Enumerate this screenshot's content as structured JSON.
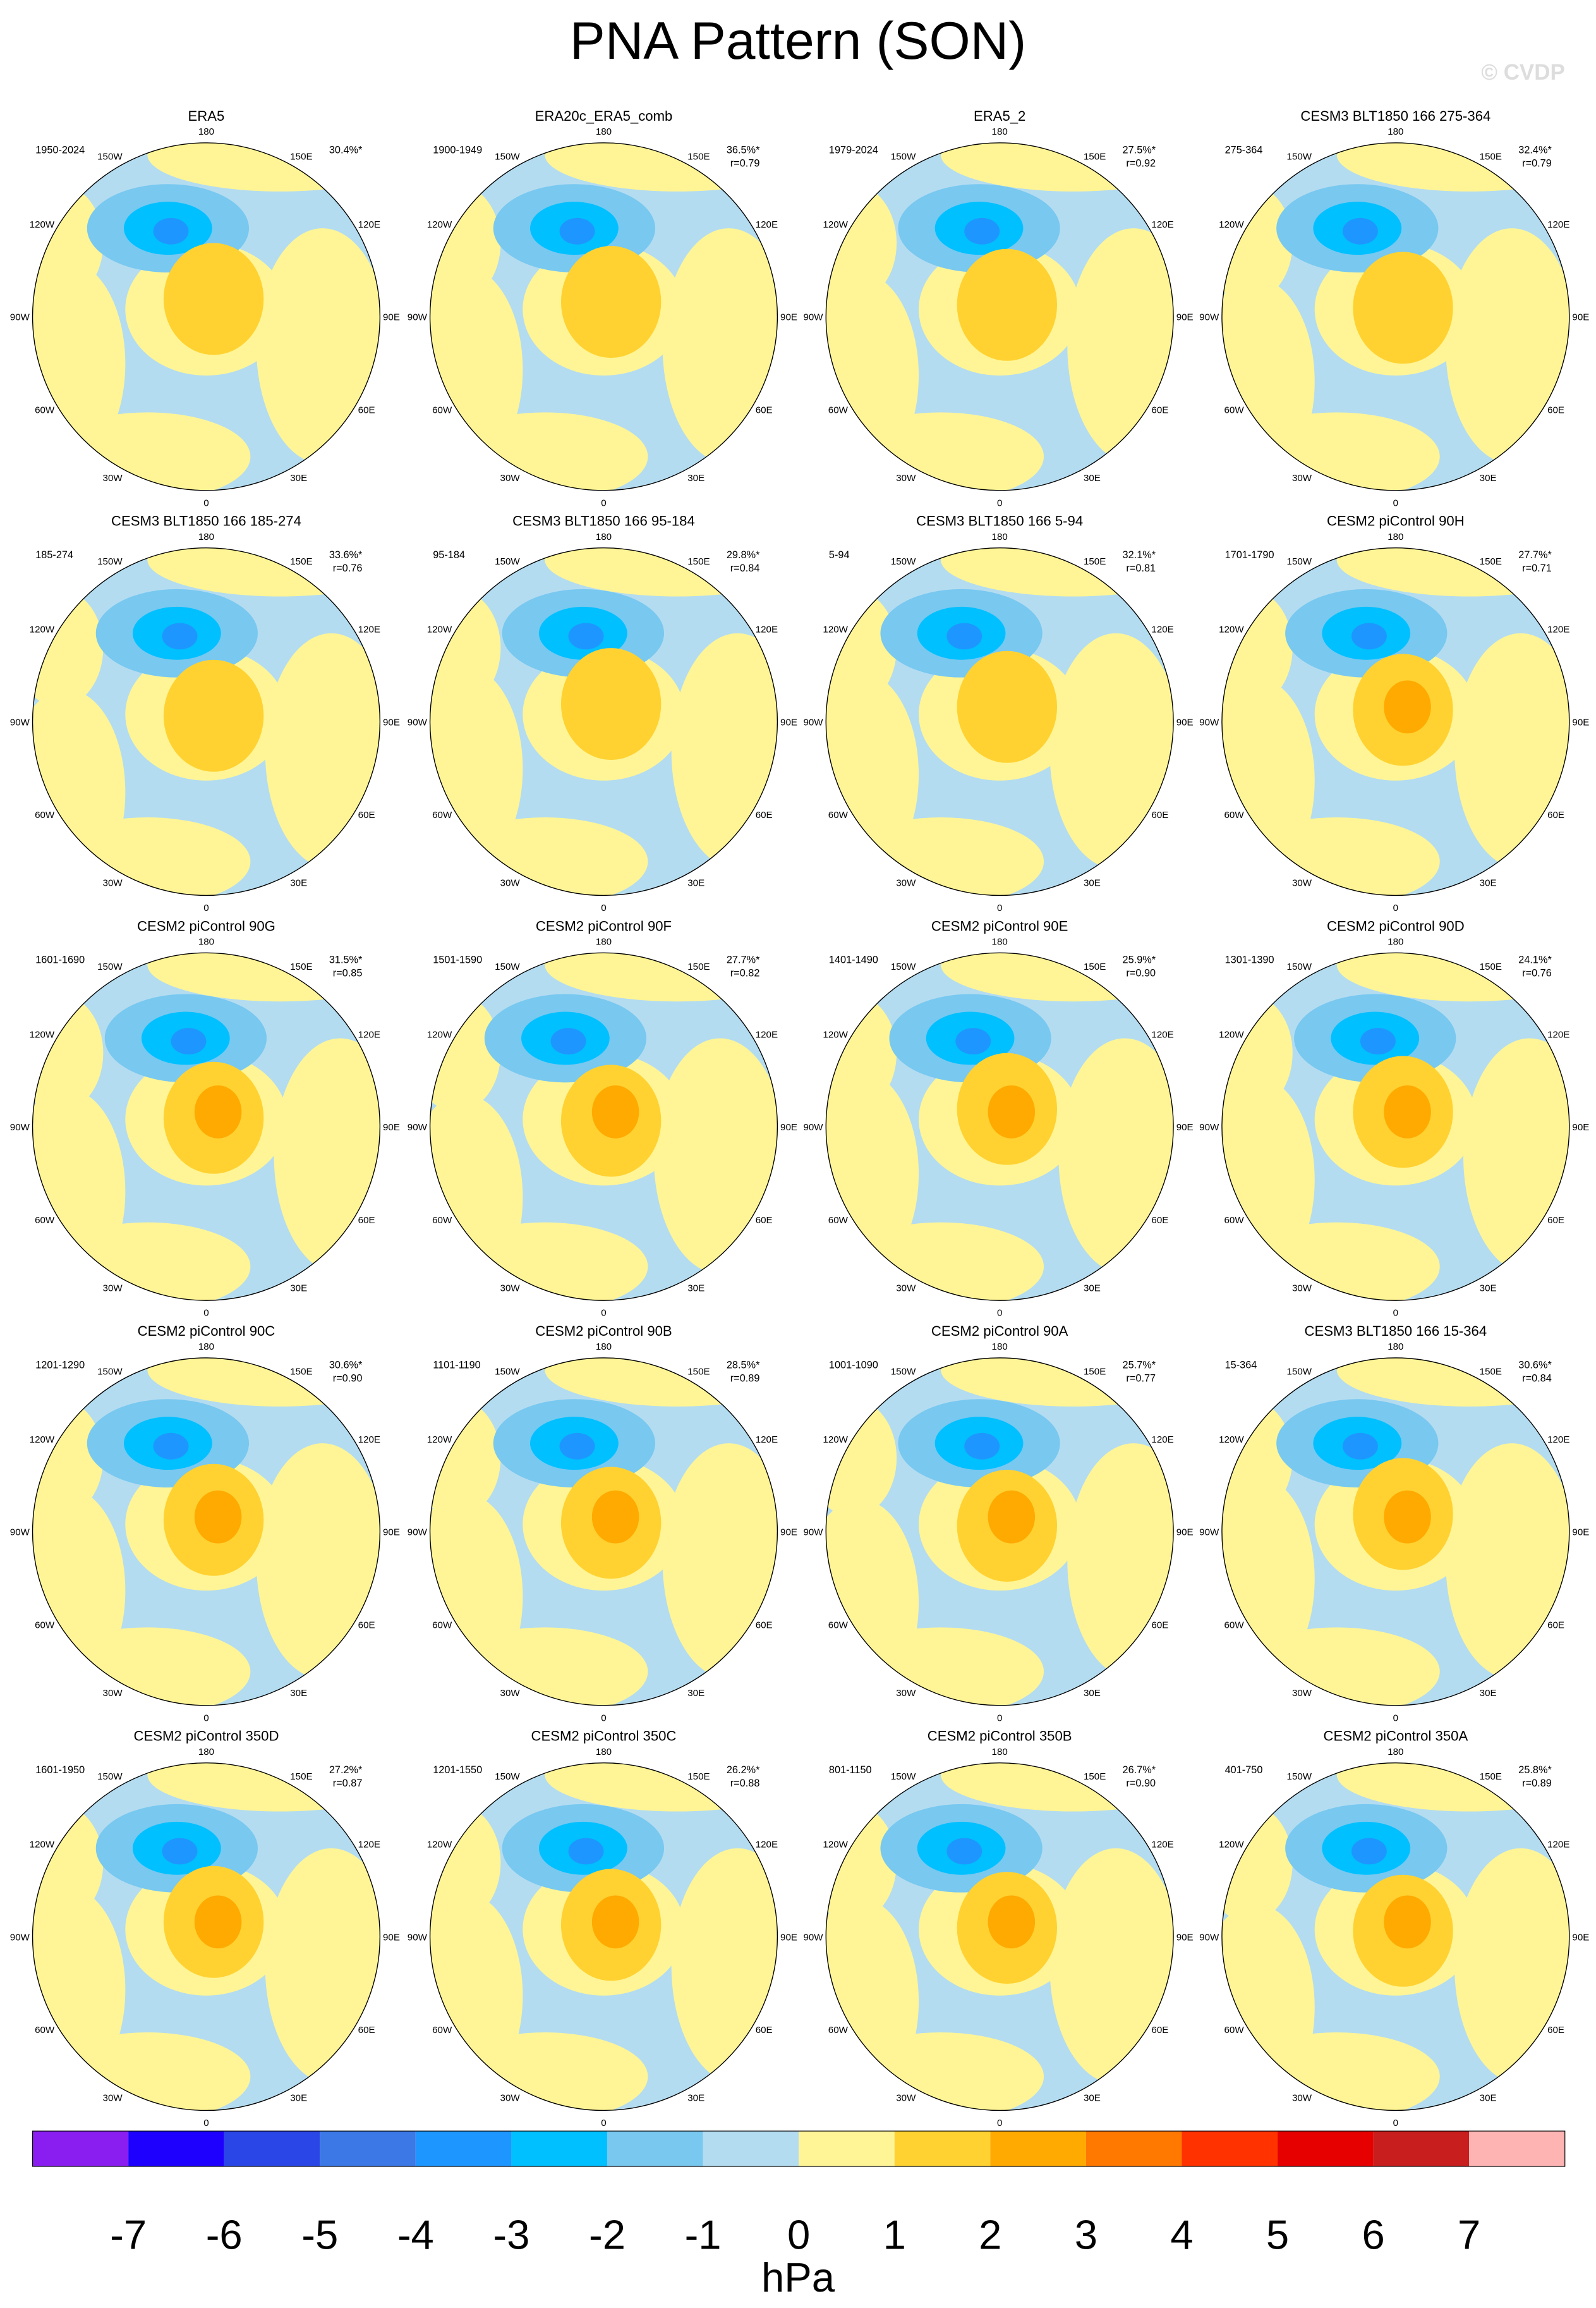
{
  "header": {
    "title": "PNA Pattern (SON)",
    "watermark": "© CVDP"
  },
  "longitude_labels": [
    "180",
    "150E",
    "120E",
    "90E",
    "60E",
    "30E",
    "0",
    "30W",
    "60W",
    "90W",
    "120W",
    "150W"
  ],
  "panels": [
    {
      "title": "ERA5",
      "period": "1950-2024",
      "pct": "30.4%*"
    },
    {
      "title": "ERA20c_ERA5_comb",
      "period": "1900-1949",
      "pct": "36.5%*",
      "r": "r=0.79"
    },
    {
      "title": "ERA5_2",
      "period": "1979-2024",
      "pct": "27.5%*",
      "r": "r=0.92"
    },
    {
      "title": "CESM3 BLT1850 166 275-364",
      "period": "275-364",
      "pct": "32.4%*",
      "r": "r=0.79"
    },
    {
      "title": "CESM3 BLT1850 166 185-274",
      "period": "185-274",
      "pct": "33.6%*",
      "r": "r=0.76"
    },
    {
      "title": "CESM3 BLT1850 166 95-184",
      "period": "95-184",
      "pct": "29.8%*",
      "r": "r=0.84"
    },
    {
      "title": "CESM3 BLT1850 166 5-94",
      "period": "5-94",
      "pct": "32.1%*",
      "r": "r=0.81"
    },
    {
      "title": "CESM2 piControl 90H",
      "period": "1701-1790",
      "pct": "27.7%*",
      "r": "r=0.71"
    },
    {
      "title": "CESM2 piControl 90G",
      "period": "1601-1690",
      "pct": "31.5%*",
      "r": "r=0.85"
    },
    {
      "title": "CESM2 piControl 90F",
      "period": "1501-1590",
      "pct": "27.7%*",
      "r": "r=0.82"
    },
    {
      "title": "CESM2 piControl 90E",
      "period": "1401-1490",
      "pct": "25.9%*",
      "r": "r=0.90"
    },
    {
      "title": "CESM2 piControl 90D",
      "period": "1301-1390",
      "pct": "24.1%*",
      "r": "r=0.76"
    },
    {
      "title": "CESM2 piControl 90C",
      "period": "1201-1290",
      "pct": "30.6%*",
      "r": "r=0.90"
    },
    {
      "title": "CESM2 piControl 90B",
      "period": "1101-1190",
      "pct": "28.5%*",
      "r": "r=0.89"
    },
    {
      "title": "CESM2 piControl 90A",
      "period": "1001-1090",
      "pct": "25.7%*",
      "r": "r=0.77"
    },
    {
      "title": "CESM3 BLT1850 166 15-364",
      "period": "15-364",
      "pct": "30.6%*",
      "r": "r=0.84"
    },
    {
      "title": "CESM2 piControl 350D",
      "period": "1601-1950",
      "pct": "27.2%*",
      "r": "r=0.87"
    },
    {
      "title": "CESM2 piControl 350C",
      "period": "1201-1550",
      "pct": "26.2%*",
      "r": "r=0.88"
    },
    {
      "title": "CESM2 piControl 350B",
      "period": "801-1150",
      "pct": "26.7%*",
      "r": "r=0.90"
    },
    {
      "title": "CESM2 piControl 350A",
      "period": "401-750",
      "pct": "25.8%*",
      "r": "r=0.89"
    }
  ],
  "colorbar": {
    "levels": [
      -7,
      -6,
      -5,
      -4,
      -3,
      -2,
      -1,
      0,
      1,
      2,
      3,
      4,
      5,
      6,
      7
    ],
    "colors": [
      "#8a1ef0",
      "#1e00ff",
      "#2a46e6",
      "#3c78e6",
      "#1e96ff",
      "#00c0ff",
      "#78c8f0",
      "#b4dcf0",
      "#fff596",
      "#ffd232",
      "#ffaa00",
      "#ff7800",
      "#ff3200",
      "#e60000",
      "#c81e1e",
      "#ffb4b4"
    ],
    "label": "hPa"
  }
}
